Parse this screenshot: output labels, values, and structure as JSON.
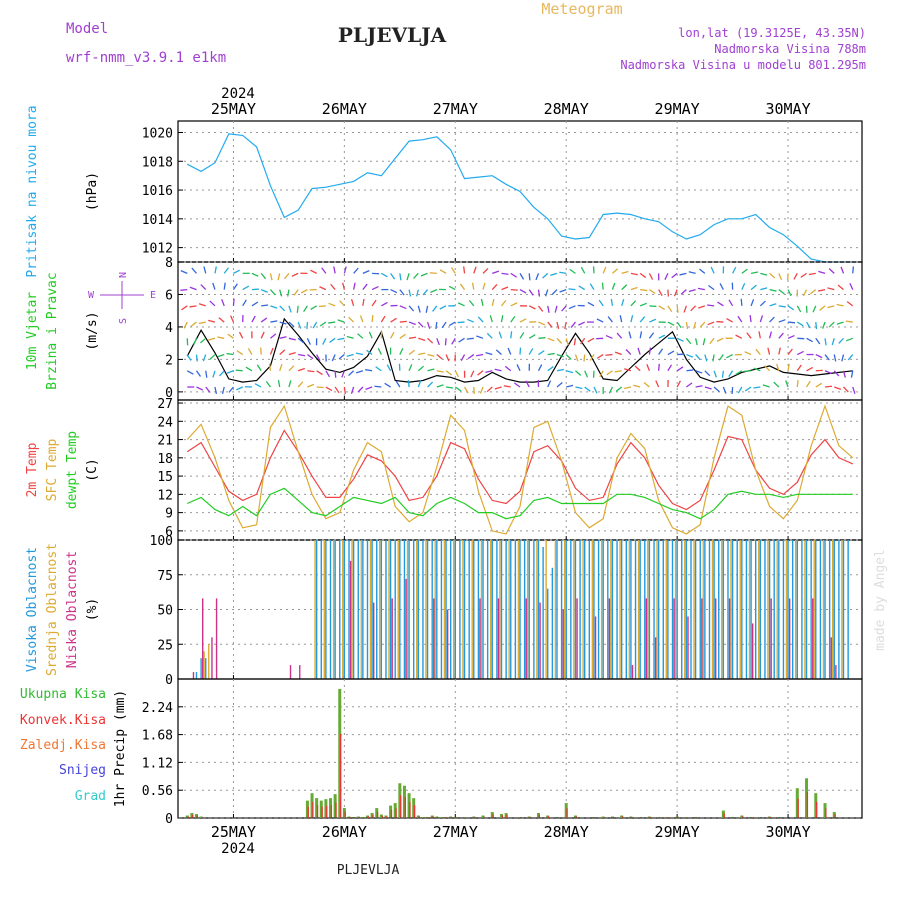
{
  "header": {
    "model_label": "Model",
    "model_name": "wrf-nmm_v3.9.1  e1km",
    "station": "PLJEVLJA",
    "product": "Meteogram",
    "lonlat": "lon,lat (19.3125E, 43.35N)",
    "elevation": "Nadmorska Visina 788m",
    "model_elevation": "Nadmorska Visina u modelu 801.295m",
    "year_top": "2024",
    "year_bottom": "2024",
    "footer_station": "PLJEVLJA",
    "watermark": "made by Angel",
    "colors": {
      "model": "#a040d0",
      "product": "#e8b860",
      "lonlat": "#a040d0"
    }
  },
  "days": [
    "25MAY",
    "26MAY",
    "27MAY",
    "28MAY",
    "29MAY",
    "30MAY"
  ],
  "chart_data": [
    {
      "type": "line",
      "id": "pressure",
      "ylabel_left": "Pritisak na nivou mora",
      "ylabel_unit": "(hPa)",
      "ylim": [
        1011,
        1020.8
      ],
      "yticks": [
        "1012",
        "1014",
        "1016",
        "1018",
        "1020"
      ],
      "grid": true,
      "series": [
        {
          "color": "#22aaee",
          "x": [
            0,
            3,
            6,
            9,
            12,
            15,
            18,
            21,
            24,
            27,
            30,
            33,
            36,
            39,
            42,
            45,
            48,
            51,
            54,
            57,
            60,
            63,
            66,
            69,
            72,
            75,
            78,
            81,
            84,
            87,
            90,
            93,
            96,
            99,
            102,
            105,
            108,
            111,
            114,
            117,
            120,
            123,
            126,
            129,
            132,
            135,
            138,
            141,
            144
          ],
          "values": [
            1017.8,
            1017.3,
            1017.9,
            1019.9,
            1019.8,
            1019,
            1016.3,
            1014.1,
            1014.6,
            1016.1,
            1016.2,
            1016.4,
            1016.6,
            1017.2,
            1017,
            1018.2,
            1019.4,
            1019.5,
            1019.7,
            1018.8,
            1016.8,
            1016.9,
            1017,
            1016.4,
            1015.9,
            1014.8,
            1014,
            1012.8,
            1012.6,
            1012.7,
            1014.3,
            1014.4,
            1014.3,
            1014,
            1013.8,
            1013.1,
            1012.6,
            1012.9,
            1013.6,
            1014,
            1014,
            1014.3,
            1013.4,
            1012.9,
            1012.1,
            1011.2,
            1011,
            1011,
            1011
          ]
        }
      ]
    },
    {
      "type": "line",
      "id": "wind",
      "ylabel_left": "10m Vjetar",
      "ylabel_left2": "Brzina i Pravac",
      "ylabel_unit": "(m/s)",
      "compass": {
        "n": "N",
        "s": "S",
        "e": "E",
        "w": "W"
      },
      "ylim": [
        -0.5,
        8
      ],
      "yticks": [
        "0",
        "2",
        "4",
        "6",
        "8"
      ],
      "grid": true,
      "series": [
        {
          "color": "#000000",
          "x": [
            0,
            3,
            6,
            9,
            12,
            15,
            18,
            21,
            24,
            27,
            30,
            33,
            36,
            39,
            42,
            45,
            48,
            51,
            54,
            57,
            60,
            63,
            66,
            69,
            72,
            75,
            78,
            81,
            84,
            87,
            90,
            93,
            96,
            99,
            102,
            105,
            108,
            111,
            114,
            117,
            120,
            123,
            126,
            129,
            132,
            135,
            138,
            141,
            144
          ],
          "values": [
            2.2,
            3.8,
            2.4,
            0.8,
            0.6,
            0.7,
            1.6,
            4.5,
            3.5,
            2.4,
            1.4,
            1.2,
            1.5,
            2.2,
            3.7,
            0.7,
            0.6,
            0.7,
            1.0,
            0.9,
            0.6,
            0.7,
            1.2,
            0.8,
            0.6,
            0.6,
            0.7,
            2.2,
            3.6,
            2.4,
            0.8,
            0.7,
            1.5,
            2.3,
            3.0,
            3.7,
            2.0,
            0.9,
            0.6,
            0.8,
            1.2,
            1.4,
            1.6,
            1.2,
            1.1,
            1.0,
            1.1,
            1.2,
            1.3
          ]
        }
      ]
    },
    {
      "type": "line",
      "id": "temperature",
      "ylabel_left": "2m Temp",
      "ylabel_left2": "SFC Temp",
      "ylabel_left3": "dewpt Temp",
      "ylabel_unit": "(C)",
      "ylim": [
        4.5,
        27.5
      ],
      "yticks": [
        "6",
        "9",
        "12",
        "15",
        "18",
        "21",
        "24",
        "27"
      ],
      "grid": true,
      "x": [
        0,
        3,
        6,
        9,
        12,
        15,
        18,
        21,
        24,
        27,
        30,
        33,
        36,
        39,
        42,
        45,
        48,
        51,
        54,
        57,
        60,
        63,
        66,
        69,
        72,
        75,
        78,
        81,
        84,
        87,
        90,
        93,
        96,
        99,
        102,
        105,
        108,
        111,
        114,
        117,
        120,
        123,
        126,
        129,
        132,
        135,
        138,
        141,
        144
      ],
      "series": [
        {
          "name": "2m Temp",
          "color": "#ee4444",
          "values": [
            19,
            20.5,
            16.5,
            12.5,
            11,
            12,
            18,
            22.5,
            19,
            15,
            11.5,
            11.5,
            14.5,
            18.5,
            17.5,
            15,
            11,
            11.5,
            15,
            20.5,
            19.5,
            14.5,
            11,
            10.5,
            12.5,
            19,
            20,
            17.5,
            13,
            11,
            11.5,
            17,
            20.5,
            18,
            13.5,
            10.5,
            9.5,
            11,
            16,
            21.5,
            21,
            16,
            13,
            12,
            14,
            18.5,
            21,
            18,
            17
          ]
        },
        {
          "name": "SFC Temp",
          "color": "#ddaa33",
          "values": [
            21,
            23.5,
            18,
            11,
            6.5,
            7,
            23,
            26.5,
            19,
            12,
            8,
            9,
            16,
            20.5,
            19,
            10,
            7.5,
            9,
            16.5,
            25,
            22.5,
            12.5,
            6,
            5.5,
            10,
            23,
            24,
            17.5,
            9,
            6.5,
            8,
            18,
            22,
            19.5,
            11,
            6.5,
            5.5,
            7,
            18,
            26.5,
            25,
            16,
            10,
            8,
            11,
            20,
            26.5,
            20,
            18
          ]
        },
        {
          "name": "dewpt Temp",
          "color": "#22cc22",
          "values": [
            10.5,
            11.5,
            9.5,
            8.5,
            10,
            8.5,
            12,
            13,
            11,
            9,
            8.5,
            10,
            11.5,
            11,
            10.5,
            11.5,
            9,
            8.5,
            10.5,
            11.5,
            10.5,
            9,
            9,
            8,
            8.5,
            11,
            11.5,
            10.5,
            10.5,
            10.5,
            10.5,
            12,
            12,
            11.5,
            10.5,
            9.5,
            9,
            8,
            9.5,
            12,
            12.5,
            12,
            12,
            11.5,
            12,
            12,
            12,
            12,
            12
          ]
        }
      ]
    },
    {
      "type": "bar",
      "id": "cloudiness",
      "ylabel_left": "Visoka Oblacnost",
      "ylabel_left2": "Srednja Oblacnost",
      "ylabel_left3": "Niska Oblacnost",
      "ylabel_unit": "(%)",
      "ylim": [
        0,
        100
      ],
      "yticks": [
        "0",
        "25",
        "50",
        "75",
        "100"
      ],
      "grid": true,
      "series": [
        {
          "name": "Visoka Oblacnost",
          "color": "#2299dd",
          "x": [
            2,
            3,
            4,
            28,
            29,
            30,
            31,
            32,
            33,
            34,
            35,
            36,
            37,
            38,
            39,
            40,
            41,
            42,
            43,
            44,
            45,
            46,
            47,
            48,
            49,
            50,
            51,
            52,
            53,
            54,
            55,
            56,
            57,
            58,
            59,
            60,
            61,
            62,
            63,
            64,
            65,
            66,
            67,
            68,
            69,
            70,
            71,
            72,
            73,
            74,
            75,
            76,
            77,
            78,
            79,
            80,
            81,
            82,
            83,
            84,
            85,
            86,
            87,
            88,
            89,
            90,
            91,
            92,
            93,
            94,
            95,
            96,
            97,
            98,
            99,
            100,
            101,
            102,
            103,
            104,
            105,
            106,
            107,
            108,
            109,
            110,
            111,
            112,
            113,
            114,
            115,
            116,
            117,
            118,
            119,
            120,
            121,
            122,
            123,
            124,
            125,
            126,
            127,
            128,
            129,
            130,
            131,
            132,
            133,
            134,
            135,
            136,
            137,
            138,
            139,
            140,
            141,
            142,
            143
          ],
          "values": [
            5,
            15,
            15,
            100,
            100,
            100,
            100,
            100,
            100,
            100,
            100,
            100,
            100,
            100,
            100,
            100,
            100,
            100,
            100,
            100,
            100,
            100,
            100,
            100,
            100,
            100,
            100,
            100,
            100,
            100,
            100,
            100,
            100,
            100,
            100,
            100,
            100,
            100,
            100,
            100,
            100,
            100,
            100,
            100,
            100,
            100,
            100,
            100,
            100,
            100,
            100,
            100,
            95,
            65,
            80,
            100,
            100,
            100,
            100,
            100,
            100,
            100,
            100,
            100,
            100,
            100,
            100,
            100,
            100,
            100,
            100,
            100,
            100,
            100,
            100,
            100,
            100,
            100,
            100,
            100,
            100,
            100,
            100,
            100,
            100,
            100,
            100,
            100,
            100,
            100,
            100,
            100,
            100,
            100,
            100,
            100,
            100,
            100,
            100,
            100,
            100,
            100,
            100,
            100,
            100,
            100,
            100,
            100,
            100,
            100,
            100,
            100,
            100,
            100,
            100,
            100,
            100,
            100,
            100
          ]
        },
        {
          "name": "Srednja Oblacnost",
          "color": "#ddaa33",
          "x": [
            4,
            5,
            28,
            30,
            32,
            34,
            36,
            38,
            40,
            42,
            44,
            46,
            48,
            50,
            52,
            54,
            56,
            58,
            60,
            62,
            64,
            66,
            68,
            70,
            72,
            74,
            76,
            78,
            80,
            82,
            84,
            86,
            88,
            90,
            92,
            94,
            96,
            98,
            100,
            102,
            104,
            106,
            108,
            110,
            112,
            114,
            116,
            118,
            120,
            122,
            124,
            126,
            128,
            130,
            132,
            134,
            136,
            138,
            140,
            142
          ],
          "values": [
            20,
            25,
            100,
            100,
            100,
            100,
            100,
            100,
            100,
            100,
            100,
            100,
            100,
            100,
            100,
            100,
            100,
            100,
            100,
            100,
            100,
            100,
            100,
            100,
            100,
            100,
            100,
            100,
            100,
            100,
            100,
            100,
            100,
            100,
            100,
            100,
            100,
            100,
            100,
            100,
            100,
            100,
            100,
            100,
            100,
            100,
            100,
            100,
            100,
            100,
            100,
            100,
            100,
            100,
            100,
            100,
            100,
            100,
            100,
            100
          ]
        },
        {
          "name": "Niska Oblacnost",
          "color": "#cc3388",
          "x": [
            1,
            3,
            5,
            6,
            22,
            24,
            35,
            40,
            44,
            47,
            53,
            56,
            63,
            67,
            73,
            76,
            81,
            84,
            88,
            91,
            96,
            99,
            101,
            105,
            108,
            111,
            114,
            117,
            122,
            126,
            130,
            135,
            139,
            140
          ],
          "values": [
            5,
            58,
            30,
            58,
            10,
            10,
            85,
            55,
            58,
            72,
            58,
            50,
            58,
            58,
            58,
            55,
            50,
            58,
            45,
            58,
            10,
            58,
            30,
            58,
            45,
            58,
            58,
            58,
            40,
            58,
            58,
            58,
            30,
            10
          ]
        }
      ]
    },
    {
      "type": "bar",
      "id": "precip",
      "ylabel_left": "1hr Precip (mm)",
      "legend": [
        "Ukupna Kisa",
        "Konvek.Kisa",
        "Zaledj.Kisa",
        "Snijeg",
        "Grad"
      ],
      "legend_colors": [
        "#33bb33",
        "#ee3333",
        "#ee7733",
        "#4444dd",
        "#33cccc"
      ],
      "ylim": [
        0,
        2.8
      ],
      "yticks": [
        "0",
        "0.56",
        "1.12",
        "1.68",
        "2.24"
      ],
      "grid": true,
      "series": [
        {
          "name": "Ukupna Kisa",
          "color": "#66aa33",
          "x": [
            0,
            1,
            2,
            3,
            26,
            27,
            28,
            29,
            30,
            31,
            32,
            33,
            34,
            35,
            36,
            37,
            38,
            39,
            40,
            41,
            42,
            43,
            44,
            45,
            46,
            47,
            48,
            49,
            50,
            51,
            52,
            53,
            54,
            55,
            56,
            57,
            58,
            60,
            62,
            64,
            66,
            68,
            69,
            72,
            74,
            76,
            78,
            80,
            82,
            84,
            88,
            90,
            92,
            94,
            96,
            98,
            100,
            102,
            104,
            106,
            108,
            110,
            116,
            118,
            120,
            122,
            124,
            126,
            128,
            132,
            134,
            136,
            138,
            140
          ],
          "values": [
            0.05,
            0.1,
            0.08,
            0.03,
            0.35,
            0.5,
            0.4,
            0.35,
            0.38,
            0.4,
            0.48,
            2.6,
            0.2,
            0.03,
            0.02,
            0.03,
            0.02,
            0.05,
            0.1,
            0.2,
            0.07,
            0.05,
            0.25,
            0.3,
            0.7,
            0.65,
            0.5,
            0.4,
            0.05,
            0.02,
            0.02,
            0.05,
            0.03,
            0.02,
            0.02,
            0.03,
            0.02,
            0.02,
            0.03,
            0.05,
            0.12,
            0.08,
            0.1,
            0.02,
            0.03,
            0.1,
            0.05,
            0.02,
            0.3,
            0.05,
            0.02,
            0.03,
            0.03,
            0.05,
            0.03,
            0.02,
            0.03,
            0.02,
            0.02,
            0.03,
            0.02,
            0.02,
            0.15,
            0.02,
            0.05,
            0.02,
            0.02,
            0.03,
            0.02,
            0.6,
            0.8,
            0.5,
            0.3,
            0.12
          ]
        }
      ]
    }
  ]
}
